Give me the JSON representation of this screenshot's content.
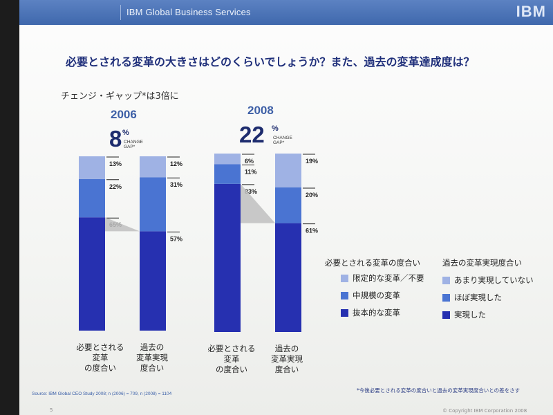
{
  "header": {
    "title": "IBM Global Business Services",
    "logo": "IBM"
  },
  "headline": "必要とされる変革の大きさはどのくらいでしょうか？また、過去の変革達成度は？",
  "subtitle": "チェンジ・ギャップ*は3倍に",
  "groups": [
    {
      "year": "2006",
      "gap_value": "8",
      "gap_unit": "%",
      "gap_label": "CHANGE GAP*"
    },
    {
      "year": "2008",
      "gap_value": "22",
      "gap_unit": "%",
      "gap_label": "CHANGE GAP*"
    }
  ],
  "chart_data": {
    "type": "bar",
    "stacked": true,
    "unit": "%",
    "bars": [
      {
        "group": "2006",
        "category": "必要とされる変革の度合い",
        "values": [
          65,
          22,
          13
        ]
      },
      {
        "group": "2006",
        "category": "過去の変革実現度合い",
        "values": [
          57,
          31,
          12
        ]
      },
      {
        "group": "2008",
        "category": "必要とされる変革の度合い",
        "values": [
          83,
          11,
          6
        ]
      },
      {
        "group": "2008",
        "category": "過去の変革実現度合い",
        "values": [
          61,
          20,
          19
        ]
      }
    ],
    "segment_labels": [
      [
        "65%",
        "22%",
        "13%"
      ],
      [
        "57%",
        "31%",
        "12%"
      ],
      [
        "83%",
        "11%",
        "6%"
      ],
      [
        "61%",
        "20%",
        "19%"
      ]
    ],
    "category_labels": [
      [
        "必要とされる",
        "変革",
        "の度合い"
      ],
      [
        "過去の",
        "変革実現",
        "度合い"
      ],
      [
        "必要とされる",
        "変革",
        "の度合い"
      ],
      [
        "過去の",
        "変革実現",
        "度合い"
      ]
    ],
    "colors": [
      "#2630b0",
      "#4a74d2",
      "#9fb2e4"
    ],
    "legend": [
      {
        "title": "必要とされる変革の度合い",
        "items": [
          "限定的な変革／不要",
          "中規模の変革",
          "抜本的な変革"
        ]
      },
      {
        "title": "過去の変革実現度合い",
        "items": [
          "あまり実現していない",
          "ほぼ実現した",
          "実現した"
        ]
      }
    ],
    "legend_colors": [
      "#9fb2e4",
      "#4a74d2",
      "#2630b0"
    ]
  },
  "source": "Source: IBM Global CEO Study 2008; n (2006) = 709, n (2008) = 1104",
  "footnote": "*今後必要とされる変革の度合いと過去の変革実現度合いとの差をさす",
  "page_number": "5",
  "copyright": "© Copyright IBM Corporation 2008"
}
